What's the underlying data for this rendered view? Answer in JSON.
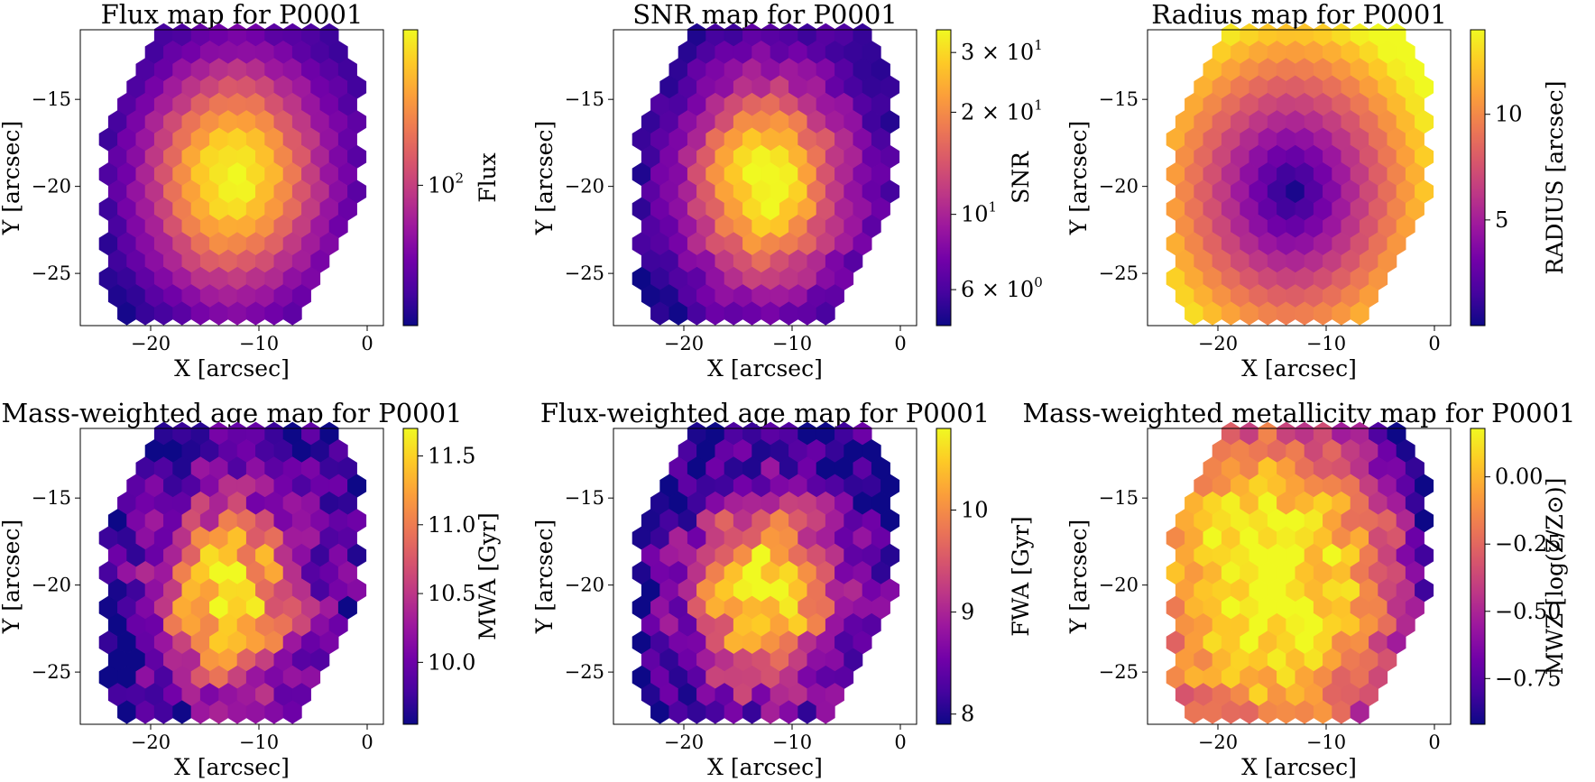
{
  "figure": {
    "colormap": "plasma",
    "colormap_stops": [
      "#0d0887",
      "#46039f",
      "#7201a8",
      "#9c179e",
      "#bd3786",
      "#d8576b",
      "#ed7953",
      "#fb9f3a",
      "#fdca26",
      "#f0f921"
    ]
  },
  "chart_data": [
    {
      "type": "heatmap",
      "title": "Flux map for P0001",
      "xlabel": "X [arcsec]",
      "ylabel": "Y [arcsec]",
      "xlim": [
        -26.5,
        1.5
      ],
      "ylim": [
        -28,
        -11
      ],
      "xticks": [
        {
          "v": -20,
          "t": "−20"
        },
        {
          "v": -10,
          "t": "−10"
        },
        {
          "v": 0,
          "t": "0"
        }
      ],
      "yticks": [
        {
          "v": -15,
          "t": "−15"
        },
        {
          "v": -20,
          "t": "−20"
        },
        {
          "v": -25,
          "t": "−25"
        }
      ],
      "colorbar": {
        "label": "Flux",
        "scale": "log",
        "range": [
          35,
          320
        ],
        "ticks": [
          {
            "v": 100,
            "t": "10",
            "sup": "2"
          }
        ]
      },
      "field": {
        "pattern": "peak",
        "center": [
          -12.5,
          -19.5
        ],
        "radius": 14,
        "tilt": 0.25,
        "noise": 0.05
      }
    },
    {
      "type": "heatmap",
      "title": "SNR map for P0001",
      "xlabel": "X [arcsec]",
      "ylabel": "Y [arcsec]",
      "xlim": [
        -26.5,
        1.5
      ],
      "ylim": [
        -28,
        -11
      ],
      "xticks": [
        {
          "v": -20,
          "t": "−20"
        },
        {
          "v": -10,
          "t": "−10"
        },
        {
          "v": 0,
          "t": "0"
        }
      ],
      "yticks": [
        {
          "v": -15,
          "t": "−15"
        },
        {
          "v": -20,
          "t": "−20"
        },
        {
          "v": -25,
          "t": "−25"
        }
      ],
      "colorbar": {
        "label": "SNR",
        "scale": "log",
        "range": [
          4.7,
          35
        ],
        "ticks": [
          {
            "v": 30,
            "t": "3 × 10",
            "sup": "1"
          },
          {
            "v": 20,
            "t": "2 × 10",
            "sup": "1"
          },
          {
            "v": 10,
            "t": "10",
            "sup": "1"
          },
          {
            "v": 6,
            "t": "6 × 10",
            "sup": "0"
          }
        ]
      },
      "field": {
        "pattern": "peak",
        "center": [
          -12.5,
          -19.8
        ],
        "radius": 13,
        "tilt": 0.15,
        "noise": 0.12
      }
    },
    {
      "type": "heatmap",
      "title": "Radius map for P0001",
      "xlabel": "X [arcsec]",
      "ylabel": "Y [arcsec]",
      "xlim": [
        -26.5,
        1.5
      ],
      "ylim": [
        -28,
        -11
      ],
      "xticks": [
        {
          "v": -20,
          "t": "−20"
        },
        {
          "v": -10,
          "t": "−10"
        },
        {
          "v": 0,
          "t": "0"
        }
      ],
      "yticks": [
        {
          "v": -15,
          "t": "−15"
        },
        {
          "v": -20,
          "t": "−20"
        },
        {
          "v": -25,
          "t": "−25"
        }
      ],
      "colorbar": {
        "label": "RADIUS [arcsec]",
        "scale": "linear",
        "range": [
          0,
          14
        ],
        "ticks": [
          {
            "v": 10,
            "t": "10"
          },
          {
            "v": 5,
            "t": "5"
          }
        ]
      },
      "field": {
        "pattern": "radius",
        "center": [
          -13.2,
          -20.3
        ],
        "radius": 14,
        "tilt": 0,
        "noise": 0
      }
    },
    {
      "type": "heatmap",
      "title": "Mass-weighted age map for P0001",
      "xlabel": "X [arcsec]",
      "ylabel": "Y [arcsec]",
      "xlim": [
        -26.5,
        1.5
      ],
      "ylim": [
        -28,
        -11
      ],
      "xticks": [
        {
          "v": -20,
          "t": "−20"
        },
        {
          "v": -10,
          "t": "−10"
        },
        {
          "v": 0,
          "t": "0"
        }
      ],
      "yticks": [
        {
          "v": -15,
          "t": "−15"
        },
        {
          "v": -20,
          "t": "−20"
        },
        {
          "v": -25,
          "t": "−25"
        }
      ],
      "colorbar": {
        "label": "MWA [Gyr]",
        "scale": "linear",
        "range": [
          9.55,
          11.7
        ],
        "ticks": [
          {
            "v": 11.5,
            "t": "11.5"
          },
          {
            "v": 11.0,
            "t": "11.0"
          },
          {
            "v": 10.5,
            "t": "10.5"
          },
          {
            "v": 10.0,
            "t": "10.0"
          }
        ]
      },
      "field": {
        "pattern": "peak",
        "center": [
          -13,
          -20.5
        ],
        "radius": 12,
        "tilt": 0.4,
        "noise": 0.35
      }
    },
    {
      "type": "heatmap",
      "title": "Flux-weighted age map for P0001",
      "xlabel": "X [arcsec]",
      "ylabel": "Y [arcsec]",
      "xlim": [
        -26.5,
        1.5
      ],
      "ylim": [
        -28,
        -11
      ],
      "xticks": [
        {
          "v": -20,
          "t": "−20"
        },
        {
          "v": -10,
          "t": "−10"
        },
        {
          "v": 0,
          "t": "0"
        }
      ],
      "yticks": [
        {
          "v": -15,
          "t": "−15"
        },
        {
          "v": -20,
          "t": "−20"
        },
        {
          "v": -25,
          "t": "−25"
        }
      ],
      "colorbar": {
        "label": "FWA [Gyr]",
        "scale": "linear",
        "range": [
          7.9,
          10.8
        ],
        "ticks": [
          {
            "v": 10,
            "t": "10"
          },
          {
            "v": 9,
            "t": "9"
          },
          {
            "v": 8,
            "t": "8"
          }
        ]
      },
      "field": {
        "pattern": "peak",
        "center": [
          -13,
          -20.5
        ],
        "radius": 12,
        "tilt": 0.4,
        "noise": 0.35
      }
    },
    {
      "type": "heatmap",
      "title": "Mass-weighted metallicity map for P0001",
      "xlabel": "X [arcsec]",
      "ylabel": "Y [arcsec]",
      "xlim": [
        -26.5,
        1.5
      ],
      "ylim": [
        -28,
        -11
      ],
      "xticks": [
        {
          "v": -20,
          "t": "−20"
        },
        {
          "v": -10,
          "t": "−10"
        },
        {
          "v": 0,
          "t": "0"
        }
      ],
      "yticks": [
        {
          "v": -15,
          "t": "−15"
        },
        {
          "v": -20,
          "t": "−20"
        },
        {
          "v": -25,
          "t": "−25"
        }
      ],
      "colorbar": {
        "label": "MWZ [log(Z/Z⊙)]",
        "scale": "linear",
        "range": [
          -0.92,
          0.18
        ],
        "ticks": [
          {
            "v": 0,
            "t": "0.00"
          },
          {
            "v": -0.25,
            "t": "−0.25"
          },
          {
            "v": -0.5,
            "t": "−0.50"
          },
          {
            "v": -0.75,
            "t": "−0.75"
          }
        ]
      },
      "field": {
        "pattern": "plateau",
        "center": [
          -15,
          -20
        ],
        "radius": 15,
        "tilt": -0.3,
        "noise": 0.25
      }
    }
  ]
}
